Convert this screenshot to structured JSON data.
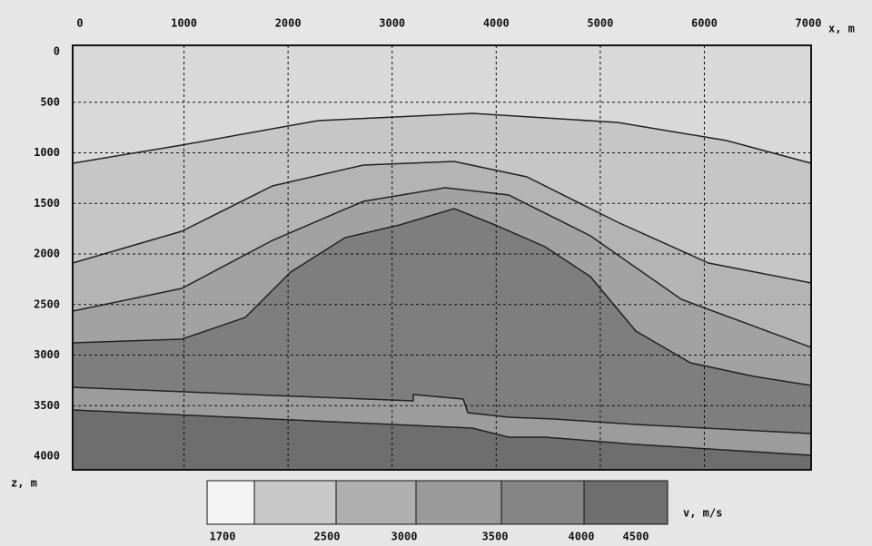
{
  "x_axis": {
    "ticks": [
      "0",
      "1000",
      "2000",
      "3000",
      "4000",
      "5000",
      "6000",
      "7000"
    ],
    "label": "x, m"
  },
  "y_axis": {
    "ticks": [
      "0",
      "500",
      "1000",
      "1500",
      "2000",
      "2500",
      "3000",
      "3500",
      "4000"
    ],
    "label": "z, m"
  },
  "legend": {
    "ticks": [
      "1700",
      "2500",
      "3000",
      "3500",
      "4000",
      "4500"
    ],
    "label": "v, m/s"
  }
}
